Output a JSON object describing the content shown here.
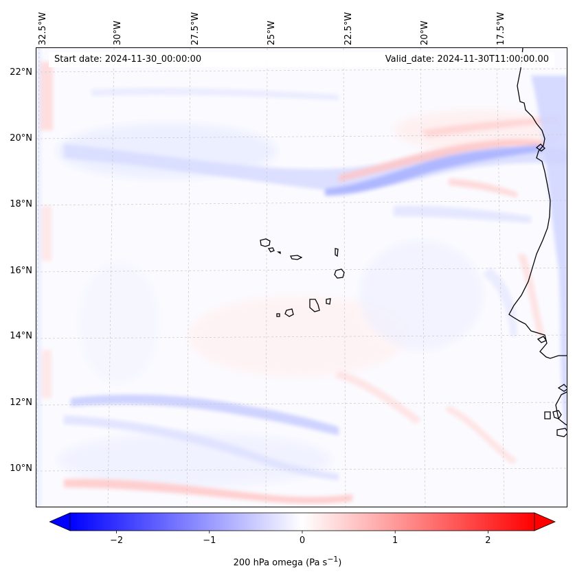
{
  "map": {
    "start_date": "Start date: 2024-11-30_00:00:00",
    "valid_date": "Valid_date: 2024-11-30T11:00:00.00",
    "lon_labels": [
      "32.5°W",
      "30°W",
      "27.5°W",
      "25°W",
      "22.5°W",
      "20°W",
      "17.5°W"
    ],
    "lat_labels": [
      "22°N",
      "20°N",
      "18°N",
      "16°N",
      "14°N",
      "12°N",
      "10°N"
    ],
    "features": [
      "cabo-verde-islands",
      "west-african-coastline"
    ]
  },
  "colorbar": {
    "ticks": [
      "−2",
      "−1",
      "0",
      "1",
      "2"
    ],
    "tick_values": [
      -2,
      -1,
      0,
      1,
      2
    ],
    "range": [
      -2.5,
      2.5
    ],
    "title": "200 hPa omega (Pa s",
    "title_sup": "−1",
    "title_end": ")",
    "colors": {
      "negative": "#0000ff",
      "zero": "#ffffff",
      "positive": "#ff0000"
    }
  }
}
